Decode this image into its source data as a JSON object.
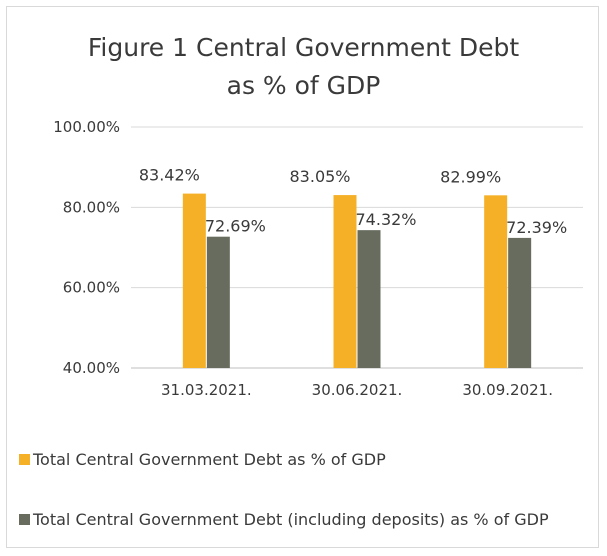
{
  "chart_data": {
    "type": "bar",
    "title": "Figure 1 Central Government Debt\nas % of GDP",
    "xlabel": "",
    "ylabel": "",
    "categories": [
      "31.03.2021.",
      "30.06.2021.",
      "30.09.2021."
    ],
    "ylim": [
      40,
      100
    ],
    "yticks": [
      "100.00%",
      "80.00%",
      "60.00%",
      "40.00%"
    ],
    "grid": true,
    "legend_position": "bottom",
    "series": [
      {
        "name": "Total Central Government Debt as % of GDP",
        "color": "#f5b027",
        "values": [
          83.42,
          83.05,
          82.99
        ],
        "labels": [
          "83.42%",
          "83.05%",
          "82.99%"
        ]
      },
      {
        "name": "Total Central Government Debt (including deposits) as % of GDP",
        "color": "#676c5e",
        "values": [
          72.69,
          74.32,
          72.39
        ],
        "labels": [
          "72.69%",
          "74.32%",
          "72.39%"
        ]
      }
    ]
  }
}
